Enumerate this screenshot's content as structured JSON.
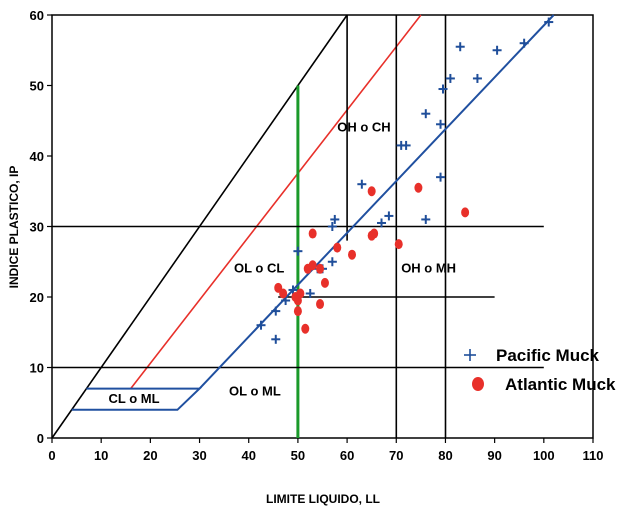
{
  "chart_data": {
    "type": "scatter",
    "title": "",
    "xlabel": "LIMITE LIQUIDO, LL",
    "ylabel": "INDICE PLASTICO, IP",
    "xlim": [
      0,
      110
    ],
    "ylim": [
      0,
      60
    ],
    "xticks": [
      0,
      10,
      20,
      30,
      40,
      50,
      60,
      70,
      80,
      90,
      100,
      110
    ],
    "yticks": [
      0,
      10,
      20,
      30,
      40,
      50,
      60
    ],
    "grid": false,
    "legend_position": "right",
    "zones": [
      {
        "label": "OH o CH",
        "x": 58,
        "y": 43.5
      },
      {
        "label": "OL o CL",
        "x": 37,
        "y": 23.5
      },
      {
        "label": "OH o MH",
        "x": 71,
        "y": 23.5
      },
      {
        "label": "OL o ML",
        "x": 36,
        "y": 6
      },
      {
        "label": "CL o ML",
        "x": 11.5,
        "y": 5
      }
    ],
    "lines": [
      {
        "name": "U-line",
        "color": "#000000",
        "points": [
          [
            0,
            0
          ],
          [
            60,
            60
          ]
        ]
      },
      {
        "name": "A-line",
        "color": "#e8302a",
        "points": [
          [
            16,
            7
          ],
          [
            75,
            60
          ]
        ]
      },
      {
        "name": "LL 50",
        "color": "#1a9a2a",
        "points": [
          [
            50,
            0
          ],
          [
            50,
            50
          ]
        ]
      },
      {
        "name": "zone LL 60",
        "color": "#000000",
        "points": [
          [
            60,
            28
          ],
          [
            60,
            60
          ]
        ]
      },
      {
        "name": "zone LL 70",
        "color": "#000000",
        "points": [
          [
            70,
            0
          ],
          [
            70,
            60
          ]
        ]
      },
      {
        "name": "zone LL 80",
        "color": "#000000",
        "points": [
          [
            80,
            0
          ],
          [
            80,
            60
          ]
        ]
      },
      {
        "name": "zone IP 30",
        "color": "#000000",
        "points": [
          [
            0,
            30
          ],
          [
            100,
            30
          ]
        ]
      },
      {
        "name": "zone IP 20",
        "color": "#000000",
        "points": [
          [
            46,
            20
          ],
          [
            90,
            20
          ]
        ]
      },
      {
        "name": "zone IP 10",
        "color": "#000000",
        "points": [
          [
            0,
            10
          ],
          [
            100,
            10
          ]
        ]
      },
      {
        "name": "blue boundary",
        "color": "#2050a0",
        "points": [
          [
            4,
            4
          ],
          [
            25.5,
            4
          ],
          [
            30,
            7
          ],
          [
            7,
            7
          ],
          [
            7,
            7
          ],
          [
            30,
            7
          ],
          [
            102,
            60
          ]
        ]
      }
    ],
    "series": [
      {
        "name": "Pacific Muck",
        "marker": "plus",
        "color": "#1f4e9a",
        "points": [
          [
            42.5,
            16
          ],
          [
            45.5,
            14
          ],
          [
            45.5,
            18
          ],
          [
            47.5,
            19.5
          ],
          [
            49,
            21
          ],
          [
            50,
            26.5
          ],
          [
            52.5,
            20.5
          ],
          [
            54,
            24
          ],
          [
            55,
            24
          ],
          [
            57,
            25
          ],
          [
            57,
            30
          ],
          [
            57.5,
            31
          ],
          [
            63,
            36
          ],
          [
            67,
            30.5
          ],
          [
            68.5,
            31.5
          ],
          [
            71,
            41.5
          ],
          [
            72,
            41.5
          ],
          [
            76,
            46
          ],
          [
            76,
            31
          ],
          [
            79,
            37
          ],
          [
            79,
            44.5
          ],
          [
            79.5,
            49.5
          ],
          [
            81,
            51
          ],
          [
            83,
            55.5
          ],
          [
            86.5,
            51
          ],
          [
            90.5,
            55
          ],
          [
            96,
            56
          ],
          [
            101,
            59
          ]
        ]
      },
      {
        "name": "Atlantic Muck",
        "marker": "circle",
        "color": "#e8302a",
        "points": [
          [
            46,
            21.3
          ],
          [
            47,
            20.5
          ],
          [
            49.5,
            20
          ],
          [
            50,
            19.5
          ],
          [
            50,
            18
          ],
          [
            50.5,
            20.5
          ],
          [
            51.5,
            15.5
          ],
          [
            52,
            24
          ],
          [
            53,
            24.5
          ],
          [
            53,
            29
          ],
          [
            54.5,
            24
          ],
          [
            54.5,
            19
          ],
          [
            55.5,
            22
          ],
          [
            58,
            27
          ],
          [
            61,
            26
          ],
          [
            65,
            35
          ],
          [
            65,
            28.7
          ],
          [
            65.5,
            29
          ],
          [
            70.5,
            27.5
          ],
          [
            74.5,
            35.5
          ],
          [
            84,
            32
          ]
        ]
      }
    ]
  }
}
